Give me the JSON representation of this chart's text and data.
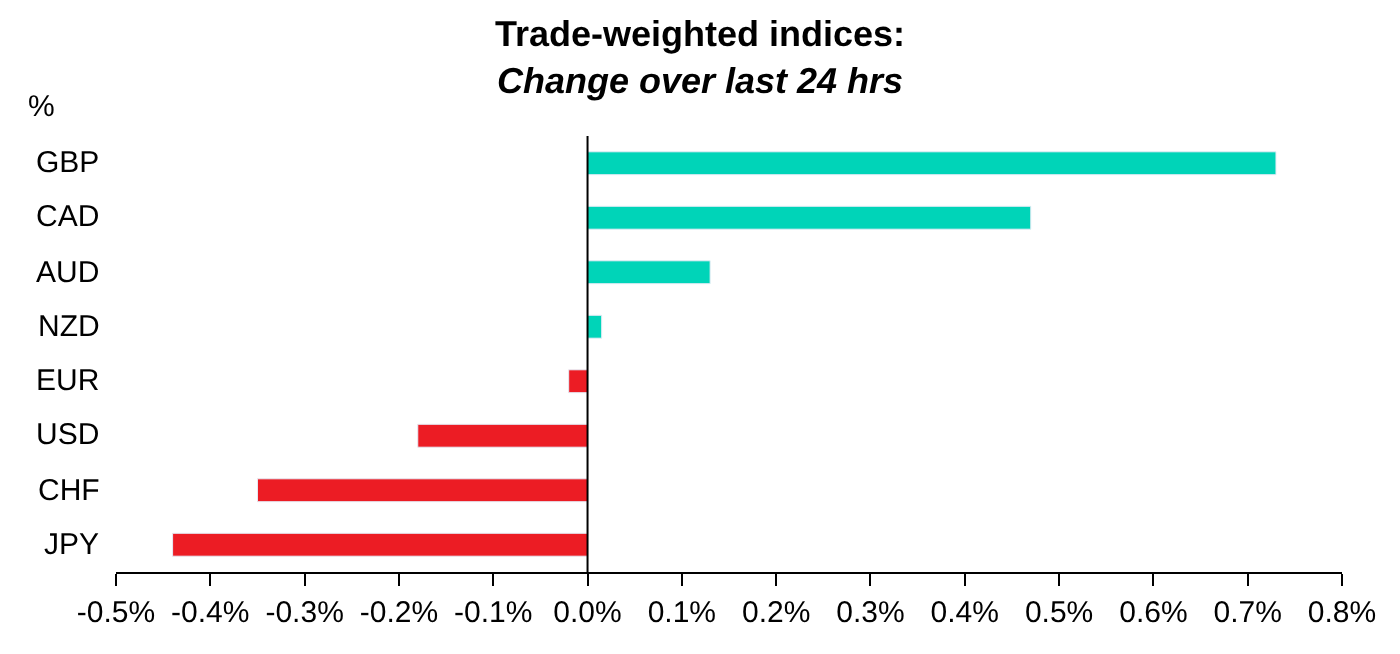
{
  "chart_data": {
    "type": "bar",
    "orientation": "horizontal",
    "title": "Trade-weighted indices:",
    "subtitle": "Change over last 24 hrs",
    "ylabel": "%",
    "categories": [
      "GBP",
      "CAD",
      "AUD",
      "NZD",
      "EUR",
      "USD",
      "CHF",
      "JPY"
    ],
    "values": [
      0.73,
      0.47,
      0.13,
      0.015,
      -0.02,
      -0.18,
      -0.35,
      -0.44
    ],
    "colors": [
      "#00d4b8",
      "#00d4b8",
      "#00d4b8",
      "#00d4b8",
      "#ec1c24",
      "#ec1c24",
      "#ec1c24",
      "#ec1c24"
    ],
    "xlim": [
      -0.5,
      0.8
    ],
    "xticks": [
      {
        "value": -0.5,
        "label": "-0.5%"
      },
      {
        "value": -0.4,
        "label": "-0.4%"
      },
      {
        "value": -0.3,
        "label": "-0.3%"
      },
      {
        "value": -0.2,
        "label": "-0.2%"
      },
      {
        "value": -0.1,
        "label": "-0.1%"
      },
      {
        "value": 0,
        "label": "0.0%"
      },
      {
        "value": 0.1,
        "label": "0.1%"
      },
      {
        "value": 0.2,
        "label": "0.2%"
      },
      {
        "value": 0.3,
        "label": "0.3%"
      },
      {
        "value": 0.4,
        "label": "0.4%"
      },
      {
        "value": 0.5,
        "label": "0.5%"
      },
      {
        "value": 0.6,
        "label": "0.6%"
      },
      {
        "value": 0.7,
        "label": "0.7%"
      },
      {
        "value": 0.8,
        "label": "0.8%"
      }
    ],
    "ref_lines": [
      {
        "axis": "x",
        "value": 0,
        "color": "#000000"
      }
    ],
    "legend": false
  }
}
